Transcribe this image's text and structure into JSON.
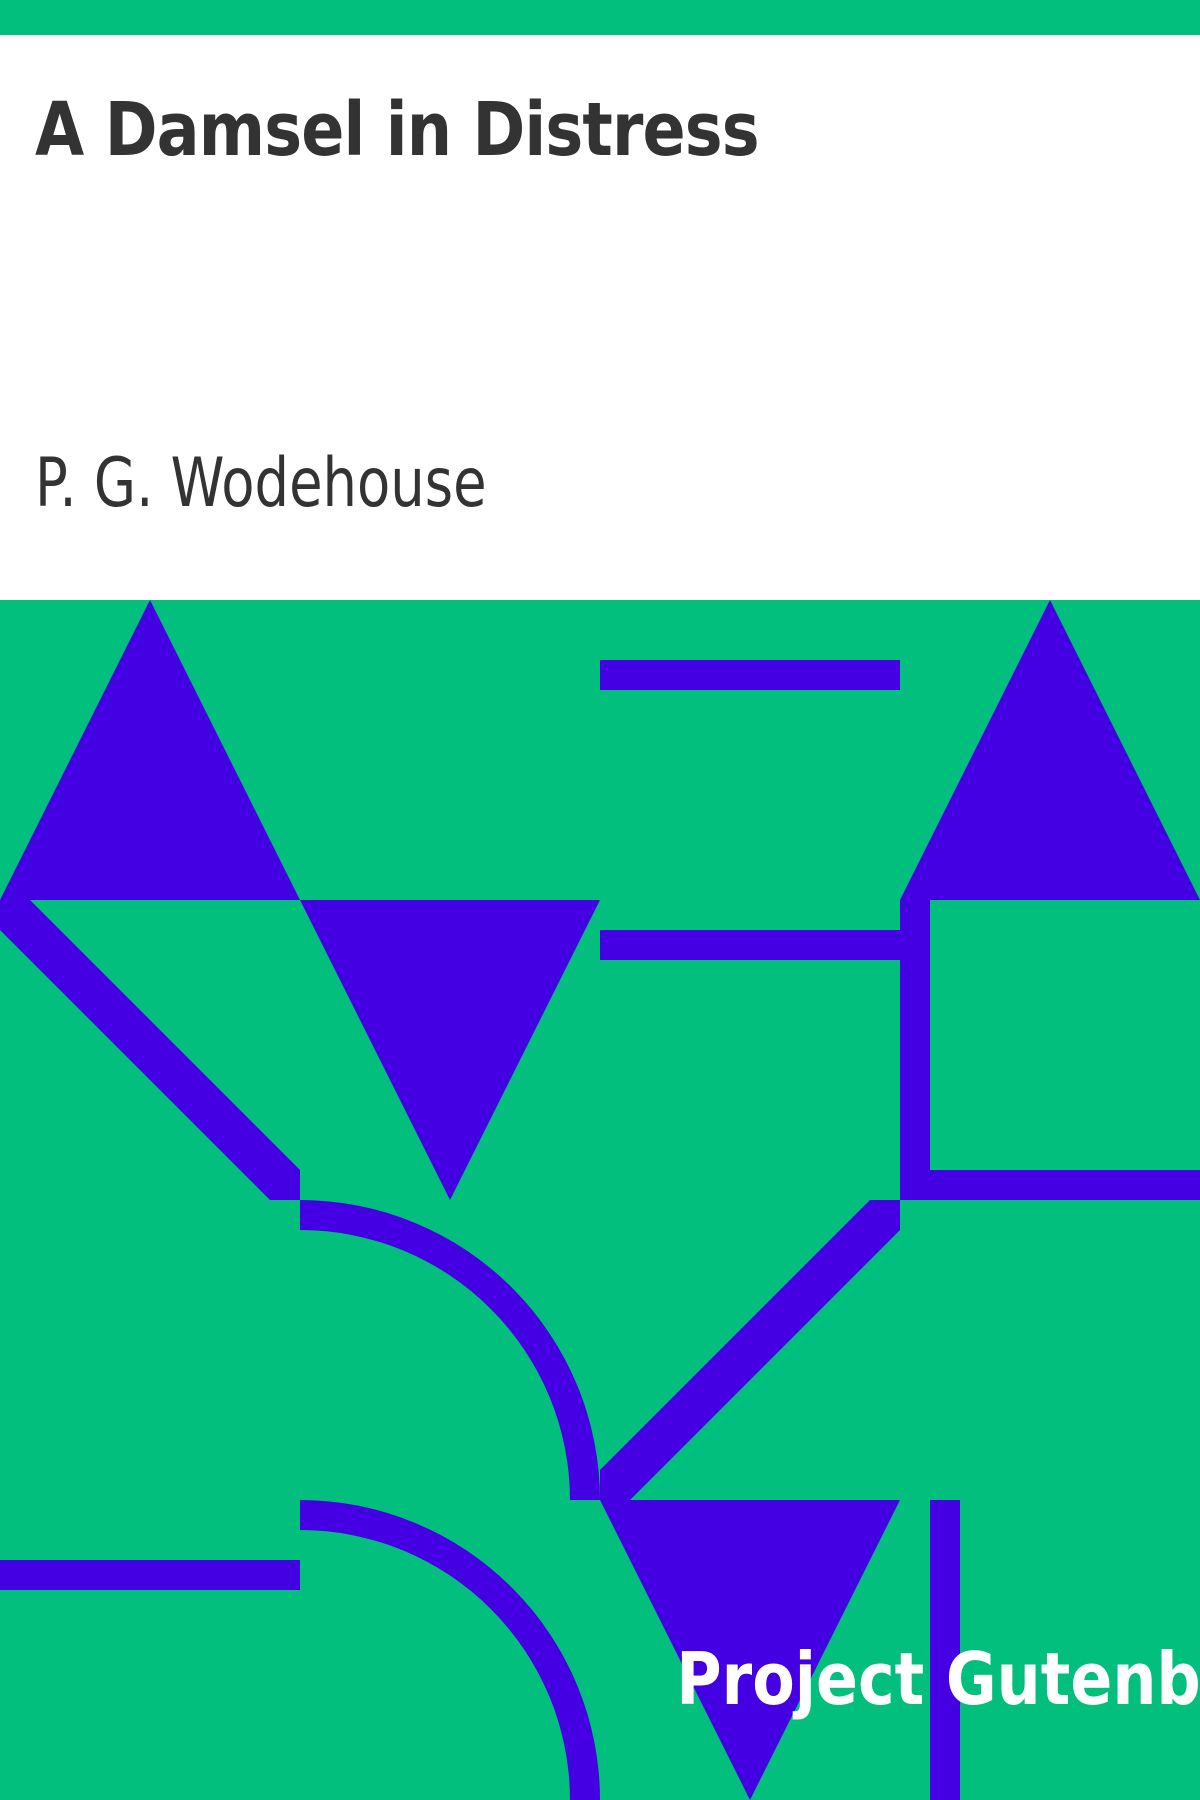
{
  "cover": {
    "title": "A Damsel in Distress",
    "author": "P. G. Wodehouse",
    "publisher": "Project Gutenberg"
  },
  "colors": {
    "background": "#02bf7e",
    "accent": "#4400e3",
    "header_background": "#ffffff",
    "text_dark": "#333333",
    "text_light": "#ffffff"
  }
}
